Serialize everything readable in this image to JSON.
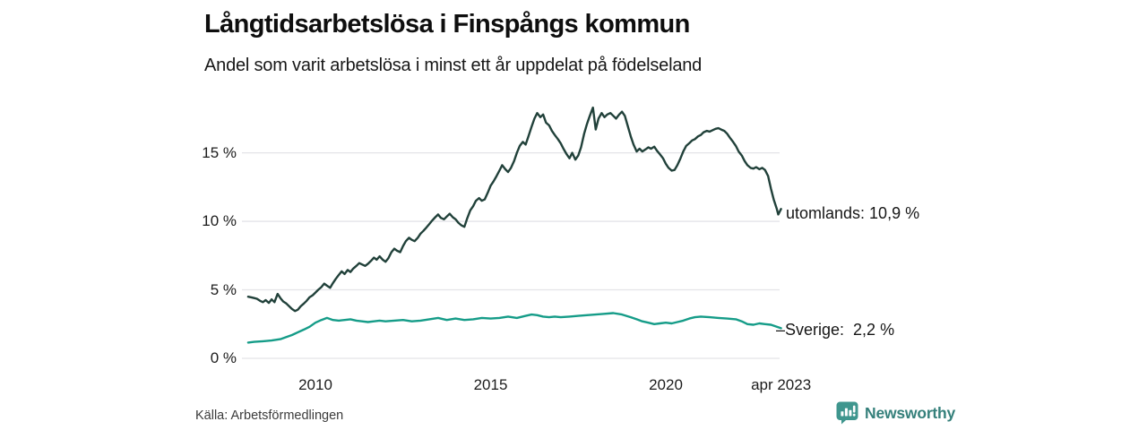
{
  "header": {
    "title": "Långtidsarbetslösa i Finspångs kommun",
    "subtitle": "Andel som varit arbetslösa i minst ett år uppdelat på födelseland"
  },
  "footer": {
    "source": "Källa: Arbetsförmedlingen",
    "brand": "Newsworthy"
  },
  "colors": {
    "utomlands_line": "#21413a",
    "sverige_line": "#159c88",
    "gridline": "#e4e4e8",
    "brand_teal": "#35807b",
    "brand_icon_teal": "#3f968e"
  },
  "chart_data": {
    "type": "line",
    "title": "Långtidsarbetslösa i Finspångs kommun",
    "subtitle": "Andel som varit arbetslösa i minst ett år uppdelat på födelseland",
    "unit": "%",
    "grid": "horizontal",
    "x_range": [
      2008.08,
      2023.29
    ],
    "ylim": [
      0,
      18.5
    ],
    "x_axis": {
      "ticks": [
        {
          "label": "2010",
          "year": 2010
        },
        {
          "label": "2015",
          "year": 2015
        },
        {
          "label": "2020",
          "year": 2020
        },
        {
          "label": "apr 2023",
          "year": 2023.29
        }
      ]
    },
    "y_axis": {
      "ticks": [
        {
          "label": "0 %",
          "value": 0
        },
        {
          "label": "5 %",
          "value": 5
        },
        {
          "label": "10 %",
          "value": 10
        },
        {
          "label": "15 %",
          "value": 15
        }
      ]
    },
    "series": [
      {
        "name": "utomlands",
        "annotation": "utomlands: 10,9 %",
        "last_value": "10,9 %",
        "color": "#21413a",
        "points": [
          [
            2008.08,
            4.5
          ],
          [
            2008.17,
            4.45
          ],
          [
            2008.25,
            4.4
          ],
          [
            2008.33,
            4.35
          ],
          [
            2008.42,
            4.2
          ],
          [
            2008.5,
            4.1
          ],
          [
            2008.58,
            4.25
          ],
          [
            2008.67,
            4.05
          ],
          [
            2008.75,
            4.3
          ],
          [
            2008.83,
            4.1
          ],
          [
            2008.92,
            4.7
          ],
          [
            2009.0,
            4.4
          ],
          [
            2009.08,
            4.15
          ],
          [
            2009.17,
            4.0
          ],
          [
            2009.25,
            3.8
          ],
          [
            2009.33,
            3.6
          ],
          [
            2009.42,
            3.45
          ],
          [
            2009.5,
            3.55
          ],
          [
            2009.58,
            3.8
          ],
          [
            2009.67,
            4.0
          ],
          [
            2009.75,
            4.2
          ],
          [
            2009.83,
            4.45
          ],
          [
            2009.92,
            4.6
          ],
          [
            2010.0,
            4.8
          ],
          [
            2010.08,
            5.0
          ],
          [
            2010.17,
            5.2
          ],
          [
            2010.25,
            5.45
          ],
          [
            2010.33,
            5.3
          ],
          [
            2010.42,
            5.15
          ],
          [
            2010.5,
            5.5
          ],
          [
            2010.58,
            5.8
          ],
          [
            2010.67,
            6.1
          ],
          [
            2010.75,
            6.35
          ],
          [
            2010.83,
            6.15
          ],
          [
            2010.92,
            6.45
          ],
          [
            2011.0,
            6.3
          ],
          [
            2011.08,
            6.55
          ],
          [
            2011.17,
            6.75
          ],
          [
            2011.25,
            6.95
          ],
          [
            2011.33,
            6.85
          ],
          [
            2011.42,
            6.75
          ],
          [
            2011.5,
            6.9
          ],
          [
            2011.58,
            7.1
          ],
          [
            2011.67,
            7.35
          ],
          [
            2011.75,
            7.2
          ],
          [
            2011.83,
            7.45
          ],
          [
            2011.92,
            7.2
          ],
          [
            2012.0,
            7.05
          ],
          [
            2012.08,
            7.3
          ],
          [
            2012.17,
            7.75
          ],
          [
            2012.25,
            8.0
          ],
          [
            2012.33,
            7.85
          ],
          [
            2012.42,
            7.75
          ],
          [
            2012.5,
            8.2
          ],
          [
            2012.58,
            8.55
          ],
          [
            2012.67,
            8.8
          ],
          [
            2012.75,
            8.65
          ],
          [
            2012.83,
            8.55
          ],
          [
            2012.92,
            8.8
          ],
          [
            2013.0,
            9.1
          ],
          [
            2013.08,
            9.3
          ],
          [
            2013.17,
            9.55
          ],
          [
            2013.25,
            9.8
          ],
          [
            2013.33,
            10.05
          ],
          [
            2013.42,
            10.3
          ],
          [
            2013.5,
            10.5
          ],
          [
            2013.58,
            10.25
          ],
          [
            2013.67,
            10.15
          ],
          [
            2013.75,
            10.35
          ],
          [
            2013.83,
            10.55
          ],
          [
            2013.92,
            10.3
          ],
          [
            2014.0,
            10.15
          ],
          [
            2014.08,
            9.9
          ],
          [
            2014.17,
            9.7
          ],
          [
            2014.25,
            9.6
          ],
          [
            2014.33,
            10.2
          ],
          [
            2014.42,
            10.8
          ],
          [
            2014.5,
            11.1
          ],
          [
            2014.58,
            11.5
          ],
          [
            2014.67,
            11.7
          ],
          [
            2014.75,
            11.5
          ],
          [
            2014.83,
            11.6
          ],
          [
            2014.92,
            12.1
          ],
          [
            2015.0,
            12.6
          ],
          [
            2015.08,
            12.9
          ],
          [
            2015.17,
            13.3
          ],
          [
            2015.25,
            13.7
          ],
          [
            2015.33,
            14.1
          ],
          [
            2015.42,
            13.8
          ],
          [
            2015.5,
            13.6
          ],
          [
            2015.58,
            13.9
          ],
          [
            2015.67,
            14.4
          ],
          [
            2015.75,
            15.0
          ],
          [
            2015.83,
            15.5
          ],
          [
            2015.92,
            15.8
          ],
          [
            2016.0,
            15.6
          ],
          [
            2016.08,
            16.2
          ],
          [
            2016.17,
            16.9
          ],
          [
            2016.25,
            17.5
          ],
          [
            2016.33,
            17.9
          ],
          [
            2016.42,
            17.6
          ],
          [
            2016.5,
            17.8
          ],
          [
            2016.58,
            17.2
          ],
          [
            2016.67,
            17.0
          ],
          [
            2016.75,
            16.6
          ],
          [
            2016.83,
            16.3
          ],
          [
            2016.92,
            16.0
          ],
          [
            2017.0,
            15.7
          ],
          [
            2017.08,
            15.3
          ],
          [
            2017.17,
            14.9
          ],
          [
            2017.25,
            14.6
          ],
          [
            2017.33,
            15.0
          ],
          [
            2017.42,
            14.5
          ],
          [
            2017.5,
            14.8
          ],
          [
            2017.58,
            15.4
          ],
          [
            2017.67,
            16.4
          ],
          [
            2017.75,
            17.1
          ],
          [
            2017.83,
            17.7
          ],
          [
            2017.92,
            18.3
          ],
          [
            2018.0,
            16.7
          ],
          [
            2018.08,
            17.5
          ],
          [
            2018.17,
            17.9
          ],
          [
            2018.25,
            17.6
          ],
          [
            2018.33,
            17.8
          ],
          [
            2018.42,
            17.9
          ],
          [
            2018.5,
            17.7
          ],
          [
            2018.58,
            17.5
          ],
          [
            2018.67,
            17.8
          ],
          [
            2018.75,
            18.0
          ],
          [
            2018.83,
            17.7
          ],
          [
            2018.92,
            16.9
          ],
          [
            2019.0,
            16.2
          ],
          [
            2019.08,
            15.6
          ],
          [
            2019.17,
            15.1
          ],
          [
            2019.25,
            15.3
          ],
          [
            2019.33,
            15.1
          ],
          [
            2019.42,
            15.25
          ],
          [
            2019.5,
            15.4
          ],
          [
            2019.58,
            15.3
          ],
          [
            2019.67,
            15.45
          ],
          [
            2019.75,
            15.15
          ],
          [
            2019.83,
            14.9
          ],
          [
            2019.92,
            14.6
          ],
          [
            2020.0,
            14.2
          ],
          [
            2020.08,
            13.9
          ],
          [
            2020.17,
            13.7
          ],
          [
            2020.25,
            13.75
          ],
          [
            2020.33,
            14.1
          ],
          [
            2020.42,
            14.6
          ],
          [
            2020.5,
            15.1
          ],
          [
            2020.58,
            15.5
          ],
          [
            2020.67,
            15.7
          ],
          [
            2020.75,
            15.9
          ],
          [
            2020.83,
            16.0
          ],
          [
            2020.92,
            16.2
          ],
          [
            2021.0,
            16.3
          ],
          [
            2021.08,
            16.5
          ],
          [
            2021.17,
            16.6
          ],
          [
            2021.25,
            16.55
          ],
          [
            2021.33,
            16.65
          ],
          [
            2021.42,
            16.75
          ],
          [
            2021.5,
            16.8
          ],
          [
            2021.58,
            16.7
          ],
          [
            2021.67,
            16.6
          ],
          [
            2021.75,
            16.4
          ],
          [
            2021.83,
            16.1
          ],
          [
            2021.92,
            15.8
          ],
          [
            2022.0,
            15.5
          ],
          [
            2022.08,
            15.1
          ],
          [
            2022.17,
            14.8
          ],
          [
            2022.25,
            14.4
          ],
          [
            2022.33,
            14.1
          ],
          [
            2022.42,
            13.9
          ],
          [
            2022.5,
            13.85
          ],
          [
            2022.58,
            13.95
          ],
          [
            2022.67,
            13.8
          ],
          [
            2022.75,
            13.9
          ],
          [
            2022.83,
            13.75
          ],
          [
            2022.92,
            13.3
          ],
          [
            2023.0,
            12.4
          ],
          [
            2023.08,
            11.6
          ],
          [
            2023.17,
            10.9
          ],
          [
            2023.21,
            10.5
          ],
          [
            2023.29,
            10.9
          ]
        ]
      },
      {
        "name": "Sverige",
        "annotation": "–Sverige:  2,2 %",
        "last_value": "2,2 %",
        "color": "#159c88",
        "points": [
          [
            2008.08,
            1.15
          ],
          [
            2008.25,
            1.2
          ],
          [
            2008.5,
            1.25
          ],
          [
            2008.75,
            1.3
          ],
          [
            2009.0,
            1.4
          ],
          [
            2009.17,
            1.55
          ],
          [
            2009.33,
            1.7
          ],
          [
            2009.5,
            1.9
          ],
          [
            2009.67,
            2.1
          ],
          [
            2009.83,
            2.3
          ],
          [
            2010.0,
            2.6
          ],
          [
            2010.17,
            2.8
          ],
          [
            2010.33,
            2.95
          ],
          [
            2010.5,
            2.8
          ],
          [
            2010.67,
            2.75
          ],
          [
            2010.83,
            2.8
          ],
          [
            2011.0,
            2.85
          ],
          [
            2011.17,
            2.75
          ],
          [
            2011.33,
            2.7
          ],
          [
            2011.5,
            2.65
          ],
          [
            2011.67,
            2.7
          ],
          [
            2011.83,
            2.75
          ],
          [
            2012.0,
            2.7
          ],
          [
            2012.25,
            2.75
          ],
          [
            2012.5,
            2.8
          ],
          [
            2012.75,
            2.7
          ],
          [
            2013.0,
            2.75
          ],
          [
            2013.25,
            2.85
          ],
          [
            2013.5,
            2.95
          ],
          [
            2013.75,
            2.8
          ],
          [
            2014.0,
            2.9
          ],
          [
            2014.25,
            2.8
          ],
          [
            2014.5,
            2.85
          ],
          [
            2014.75,
            2.95
          ],
          [
            2015.0,
            2.9
          ],
          [
            2015.25,
            2.95
          ],
          [
            2015.5,
            3.05
          ],
          [
            2015.75,
            2.95
          ],
          [
            2016.0,
            3.1
          ],
          [
            2016.17,
            3.2
          ],
          [
            2016.33,
            3.15
          ],
          [
            2016.5,
            3.05
          ],
          [
            2016.67,
            3.0
          ],
          [
            2016.83,
            3.05
          ],
          [
            2017.0,
            3.0
          ],
          [
            2017.25,
            3.05
          ],
          [
            2017.5,
            3.1
          ],
          [
            2017.75,
            3.15
          ],
          [
            2018.0,
            3.2
          ],
          [
            2018.25,
            3.25
          ],
          [
            2018.5,
            3.3
          ],
          [
            2018.75,
            3.2
          ],
          [
            2019.0,
            3.0
          ],
          [
            2019.17,
            2.85
          ],
          [
            2019.33,
            2.7
          ],
          [
            2019.5,
            2.6
          ],
          [
            2019.67,
            2.5
          ],
          [
            2019.83,
            2.55
          ],
          [
            2020.0,
            2.6
          ],
          [
            2020.17,
            2.55
          ],
          [
            2020.33,
            2.65
          ],
          [
            2020.5,
            2.75
          ],
          [
            2020.67,
            2.9
          ],
          [
            2020.83,
            3.0
          ],
          [
            2021.0,
            3.05
          ],
          [
            2021.25,
            3.0
          ],
          [
            2021.5,
            2.95
          ],
          [
            2021.75,
            2.9
          ],
          [
            2022.0,
            2.85
          ],
          [
            2022.17,
            2.7
          ],
          [
            2022.33,
            2.5
          ],
          [
            2022.5,
            2.45
          ],
          [
            2022.67,
            2.55
          ],
          [
            2022.83,
            2.5
          ],
          [
            2023.0,
            2.45
          ],
          [
            2023.17,
            2.3
          ],
          [
            2023.29,
            2.2
          ]
        ]
      }
    ]
  }
}
